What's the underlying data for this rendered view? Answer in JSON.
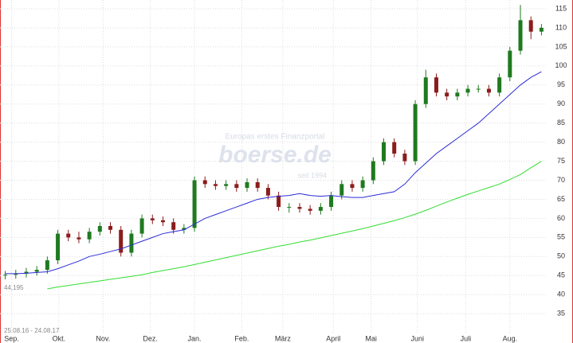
{
  "chart_data": {
    "type": "candlestick",
    "watermark": {
      "tagline": "Europas erstes Finanzportal",
      "brand": "boerse.de",
      "since": "seit 1994"
    },
    "date_range": "25.08.16 - 24.08.17",
    "start_value": {
      "value": 44.195,
      "label": "44,195"
    },
    "open": [
      45,
      45.2,
      45.5,
      46,
      46.5,
      49,
      56,
      55,
      54.5,
      56.5,
      58,
      57,
      51,
      56,
      60,
      59.5,
      59,
      57,
      57.5,
      70,
      69,
      68.5,
      69,
      68,
      69.5,
      68,
      66,
      63,
      63,
      62.5,
      62,
      63,
      66,
      69,
      68,
      70,
      75,
      80,
      77,
      75,
      90,
      97,
      93,
      92,
      93,
      94,
      94,
      93,
      97,
      104,
      112,
      109
    ],
    "high": [
      46.2,
      46.5,
      47,
      47.5,
      50,
      57,
      57,
      56.5,
      57.5,
      59,
      59,
      58,
      57,
      61,
      61,
      60.5,
      60,
      58.5,
      71,
      71,
      70,
      70,
      70,
      70.5,
      70.5,
      69,
      67,
      64,
      64,
      63.5,
      64,
      67,
      70,
      70,
      71,
      76,
      81,
      81,
      78,
      91,
      99,
      98,
      94,
      94,
      95,
      95,
      95,
      98,
      105,
      116,
      113,
      111
    ],
    "low": [
      44,
      44.2,
      44.5,
      45,
      45.5,
      48,
      54,
      53.5,
      53.5,
      55.5,
      56,
      50,
      50,
      55,
      58.5,
      58,
      56,
      56,
      56.5,
      68,
      67.5,
      67.5,
      67,
      67,
      67,
      65,
      62,
      61.5,
      61.5,
      61,
      61,
      62,
      65,
      67,
      67,
      69,
      74,
      76,
      74,
      74,
      89,
      92,
      91,
      91,
      92,
      93,
      92,
      92,
      96,
      103,
      107,
      108
    ],
    "close": [
      45.2,
      45.5,
      46,
      46.5,
      49,
      56,
      55,
      54.5,
      56.5,
      58,
      57,
      51,
      56,
      60,
      59.5,
      59,
      57,
      57.5,
      70,
      69,
      68.5,
      69,
      68,
      69.5,
      68,
      66,
      63,
      63,
      62.5,
      62,
      63,
      66,
      69,
      68,
      70,
      75,
      80,
      77,
      75,
      90,
      97,
      93,
      92,
      93,
      94,
      94,
      93,
      97,
      104,
      112,
      109,
      110
    ],
    "up_color": "#1f7a1f",
    "down_color": "#8b1c1c",
    "lines": [
      {
        "color": "#2b2bd6",
        "values": [
          45.5,
          45.5,
          45.6,
          45.8,
          46,
          46.8,
          47.8,
          48.8,
          50,
          50.6,
          51.3,
          52,
          53,
          54,
          55,
          56,
          56.5,
          57,
          58.5,
          60,
          61,
          62,
          63,
          64,
          65,
          65.5,
          65.8,
          66,
          66.5,
          66,
          65.8,
          66,
          65.7,
          65.5,
          65.5,
          66,
          66.5,
          67,
          69,
          72,
          74.5,
          77,
          79,
          81,
          83,
          85,
          87.5,
          90,
          92.5,
          95,
          97,
          98.5
        ]
      },
      {
        "color": "#33dd33",
        "values": [
          null,
          null,
          null,
          null,
          41.5,
          42,
          42.4,
          42.8,
          43.2,
          43.6,
          44,
          44.4,
          44.8,
          45.2,
          45.8,
          46.3,
          46.8,
          47.3,
          47.9,
          48.5,
          49.1,
          49.7,
          50.3,
          50.9,
          51.5,
          52.1,
          52.7,
          53.2,
          53.8,
          54.3,
          54.9,
          55.5,
          56.1,
          56.7,
          57.3,
          58,
          58.7,
          59.4,
          60.2,
          61.1,
          62.1,
          63.2,
          64.3,
          65.3,
          66.3,
          67.2,
          68.1,
          69,
          70.2,
          71.5,
          73.3,
          75
        ]
      }
    ],
    "xlim": [
      0,
      52
    ],
    "xticks": [
      {
        "value": 1.1,
        "label": "Sep."
      },
      {
        "value": 5.6,
        "label": "Okt."
      },
      {
        "value": 9.8,
        "label": "Nov."
      },
      {
        "value": 14.3,
        "label": "Dez."
      },
      {
        "value": 18.5,
        "label": "Jan."
      },
      {
        "value": 23,
        "label": "Feb."
      },
      {
        "value": 26.9,
        "label": "März"
      },
      {
        "value": 31.7,
        "label": "April"
      },
      {
        "value": 35.3,
        "label": "Mai"
      },
      {
        "value": 39.7,
        "label": "Juni"
      },
      {
        "value": 44.3,
        "label": "Juli"
      },
      {
        "value": 48.5,
        "label": "Aug."
      }
    ],
    "ylim": [
      29.6,
      117.3
    ],
    "yticks": [
      35,
      40,
      45,
      50,
      55,
      60,
      65,
      70,
      75,
      80,
      85,
      90,
      95,
      100,
      105,
      110,
      115
    ],
    "grid": true
  }
}
